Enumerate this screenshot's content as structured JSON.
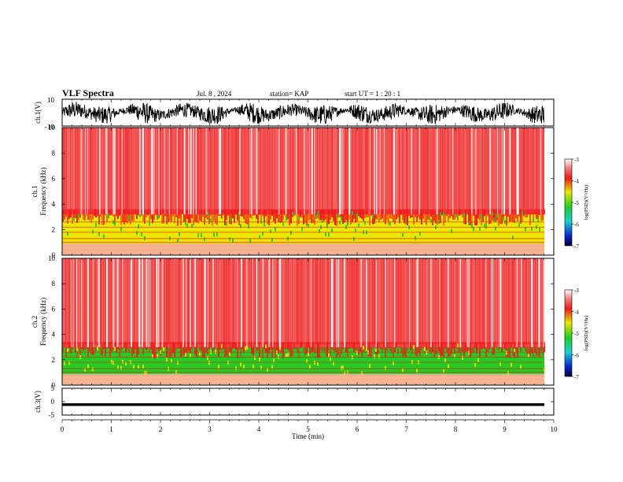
{
  "header": {
    "title": "VLF Spectra",
    "date": "Jul. 8 , 2024",
    "station": "station= KAP",
    "start": "start UT = 1 : 20 : 1"
  },
  "colors": {
    "red": "#ee1c1c",
    "yellow": "#e8e800",
    "green": "#22cc22",
    "cyan": "#18d0d0",
    "blue": "#0a2ad0",
    "navy": "#000040",
    "white": "#ffffff",
    "black": "#000000"
  },
  "chart_data": [
    {
      "type": "line",
      "panel": "ch1-waveform",
      "ylabel": "ch.1(V)",
      "ylim": [
        -10,
        10
      ],
      "ytick_labels": [
        "10",
        "-10"
      ],
      "xlim": [
        0,
        10
      ],
      "description_values": {
        "signal_amplitude_range": [
          -8,
          9
        ]
      }
    },
    {
      "type": "heatmap",
      "panel": "ch1-spectrogram",
      "ylabel_line1": "ch.1",
      "ylabel_line2": "Frequency (kHz)",
      "ylim": [
        0,
        10
      ],
      "ytick_labels": [
        "0",
        "2",
        "4",
        "6",
        "8",
        "10"
      ],
      "xlim": [
        0,
        9.85
      ],
      "bands": [
        {
          "from_khz": 0.9,
          "to_khz": 3.2,
          "dominant": "yellow",
          "log_psd": -4.6
        },
        {
          "from_khz": 3.2,
          "to_khz": 10,
          "dominant": "red",
          "log_psd": -3.8
        }
      ],
      "colorbar": {
        "title": "log(PSD)(V²/Hz)",
        "range": [
          -7,
          -3
        ],
        "tick_labels": [
          "-3",
          "-4",
          "-5",
          "-6",
          "-7"
        ]
      }
    },
    {
      "type": "heatmap",
      "panel": "ch2-spectrogram",
      "ylabel_line1": "ch.2",
      "ylabel_line2": "Frequency (kHz)",
      "ylim": [
        0,
        10
      ],
      "ytick_labels": [
        "0",
        "2",
        "4",
        "6",
        "8",
        "10"
      ],
      "xlim": [
        0,
        9.85
      ],
      "bands": [
        {
          "from_khz": 0.8,
          "to_khz": 3.0,
          "dominant": "green",
          "log_psd": -5.0
        },
        {
          "from_khz": 3.0,
          "to_khz": 10,
          "dominant": "red",
          "log_psd": -3.8
        }
      ],
      "colorbar": {
        "title": "log(PSD)(V²/Hz)",
        "range": [
          -7,
          -3
        ],
        "tick_labels": [
          "-3",
          "-4",
          "-5",
          "-6",
          "-7"
        ]
      }
    },
    {
      "type": "line",
      "panel": "ch3-waveform",
      "ylabel": "ch.3(V)",
      "ylim": [
        -5,
        5
      ],
      "ytick_labels": [
        "5",
        "0",
        "-5"
      ],
      "xlim": [
        0,
        10
      ],
      "description_values": {
        "signal_level": -1.1,
        "signal_band": [
          -1.6,
          -0.6
        ]
      }
    }
  ],
  "x_axis": {
    "label": "Time (min)",
    "range": [
      0,
      10
    ],
    "tick_labels": [
      "0",
      "1",
      "2",
      "3",
      "4",
      "5",
      "6",
      "7",
      "8",
      "9",
      "10"
    ]
  }
}
